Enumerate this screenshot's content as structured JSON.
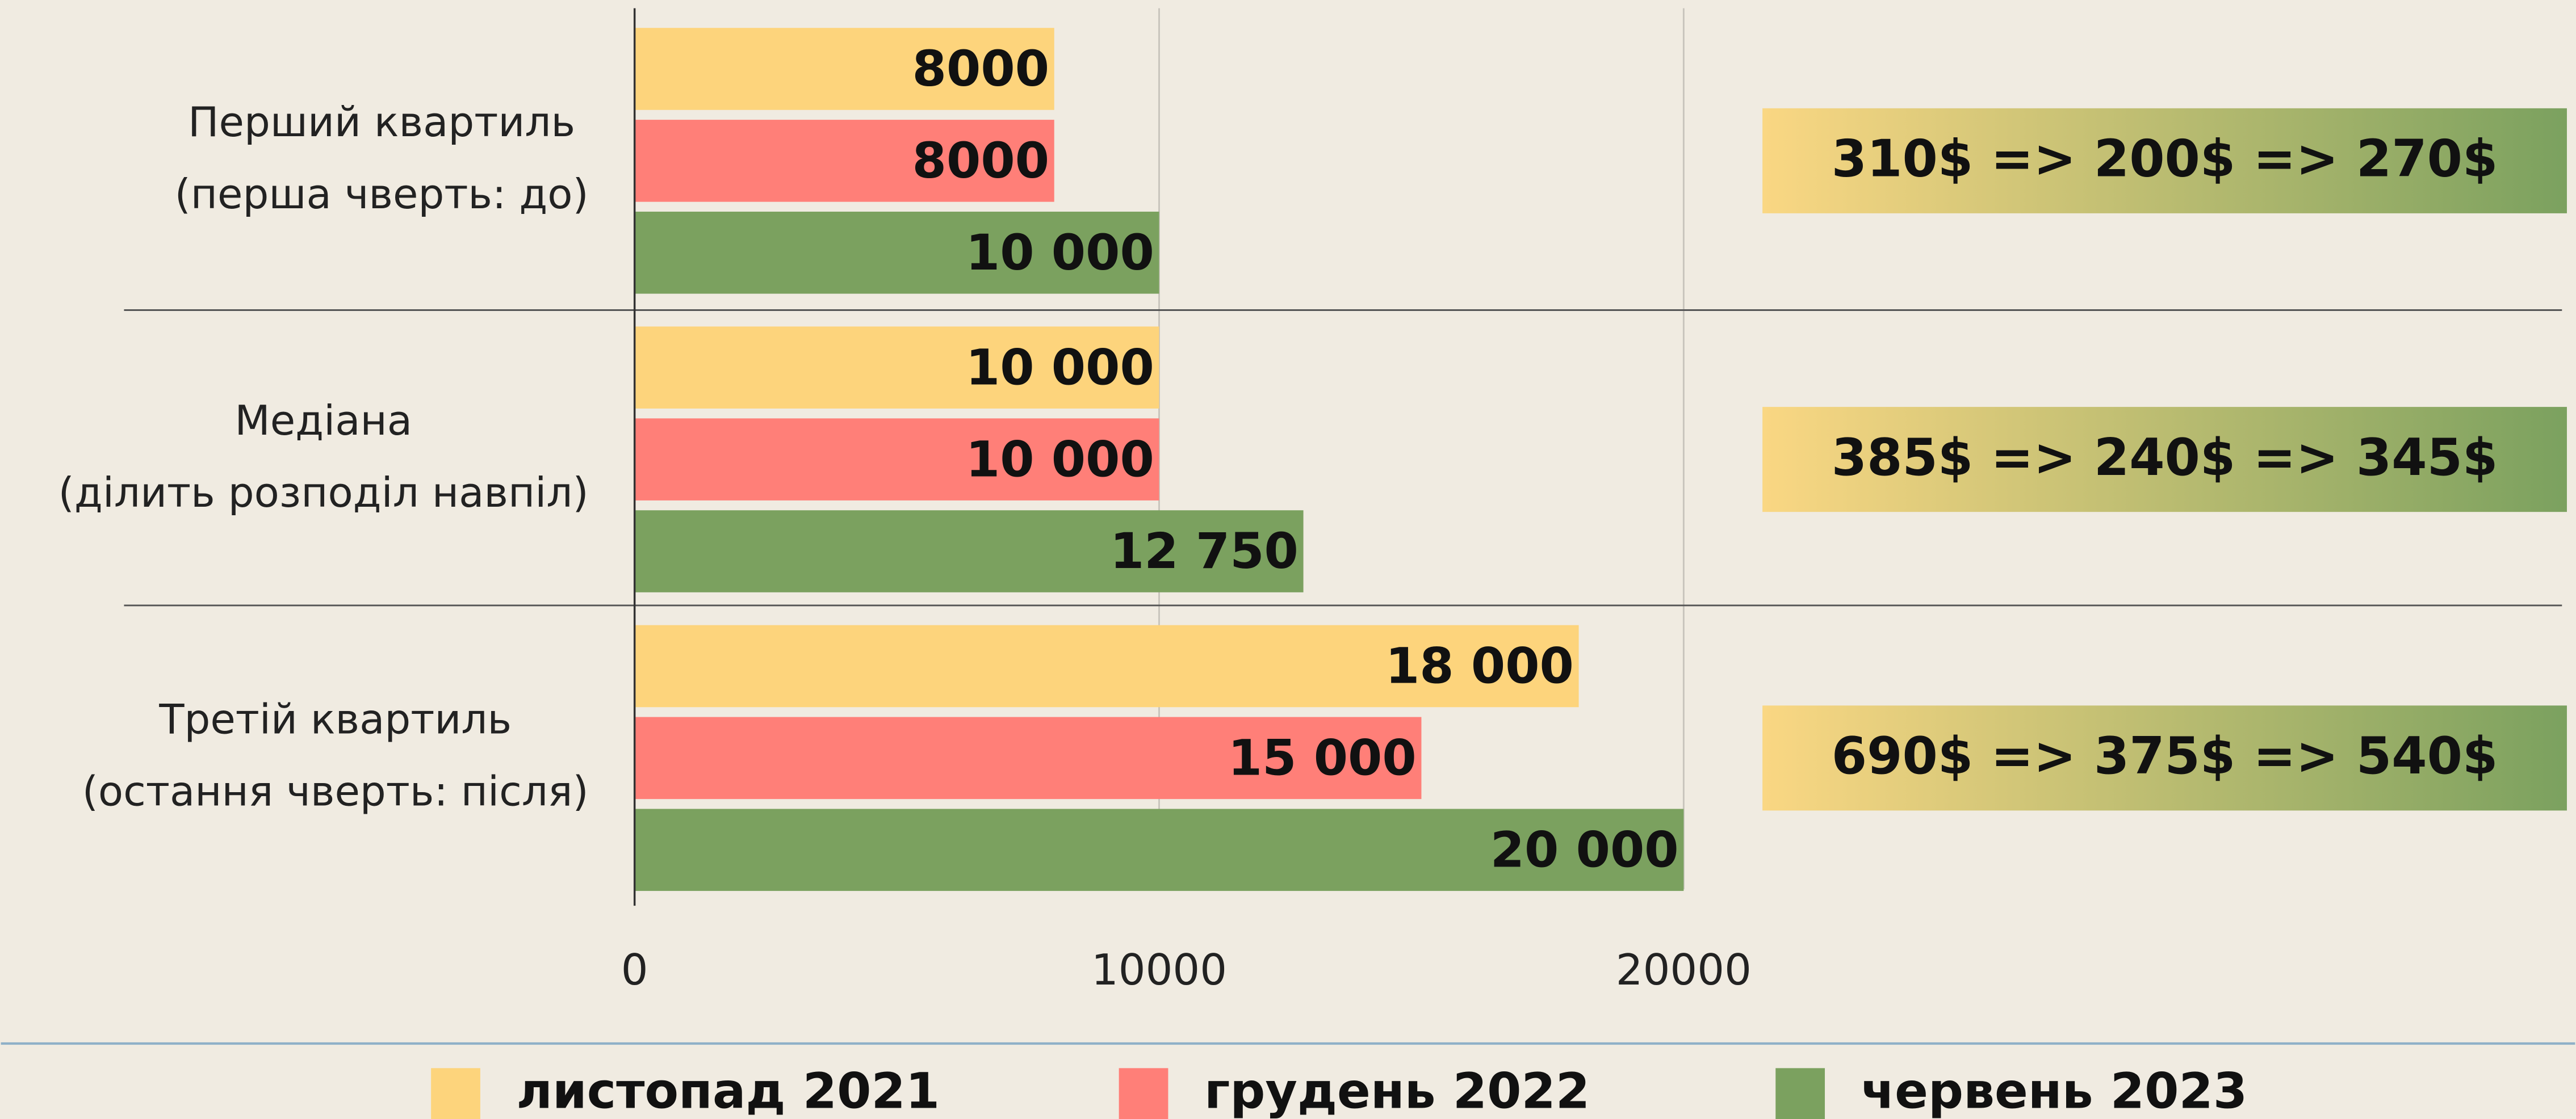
{
  "chart_data": {
    "type": "bar",
    "orientation": "horizontal",
    "categories": [
      [
        "Перший квартиль",
        "(перша чверть: до)"
      ],
      [
        "Медіана",
        "(ділить розподіл навпіл)"
      ],
      [
        "Третій квартиль",
        "(остання чверть: після)"
      ]
    ],
    "series": [
      {
        "name": "листопад 2021",
        "color": "#fdd47c",
        "values": [
          8000,
          10000,
          18000
        ],
        "value_labels": [
          "8000",
          "10 000",
          "18 000"
        ]
      },
      {
        "name": "грудень 2022",
        "color": "#ff7f78",
        "values": [
          8000,
          10000,
          15000
        ],
        "value_labels": [
          "8000",
          "10 000",
          "15 000"
        ]
      },
      {
        "name": "червень 2023",
        "color": "#7ba15f",
        "values": [
          10000,
          12750,
          20000
        ],
        "value_labels": [
          "10 000",
          "12 750",
          "20 000"
        ]
      }
    ],
    "annotations": [
      "310$ => 200$ => 270$",
      "385$ => 240$ => 345$",
      "690$ => 375$ => 540$"
    ],
    "xlim": [
      0,
      20000
    ],
    "xticks": [
      0,
      10000,
      20000
    ],
    "grid": true,
    "legend": "bottom"
  }
}
